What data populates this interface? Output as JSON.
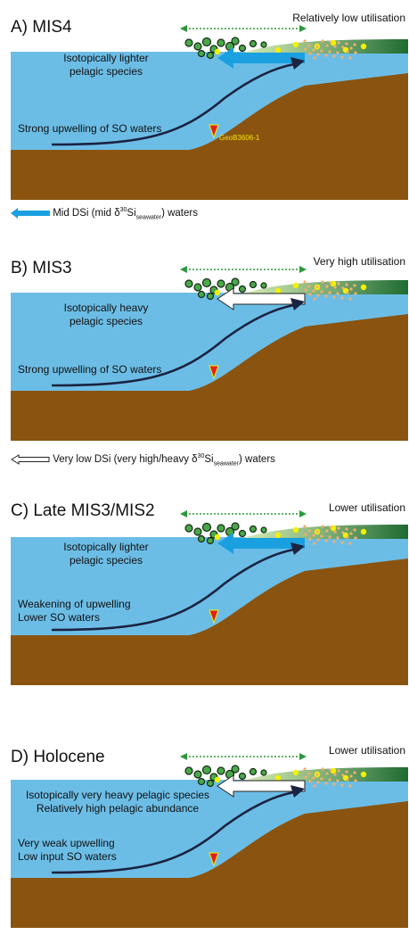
{
  "panels": [
    {
      "title": "A) MIS4",
      "utilisation": "Relatively low utilisation",
      "label_species": [
        "Isotopically lighter",
        "pelagic species"
      ],
      "label_upwelling": [
        "Strong upwelling of SO waters"
      ],
      "site_label": "GeoB3606-1",
      "arrow": "blue"
    },
    {
      "title": "B) MIS3",
      "utilisation": "Very high utilisation",
      "label_species": [
        "Isotopically heavy",
        "pelagic species"
      ],
      "label_upwelling": [
        "Strong upwelling of SO waters"
      ],
      "arrow": "white"
    },
    {
      "title": "C) Late MIS3/MIS2",
      "utilisation": "Lower utilisation",
      "label_species": [
        "Isotopically lighter",
        "pelagic species"
      ],
      "label_upwelling": [
        "Weakening of upwelling",
        "Lower SO waters"
      ],
      "arrow": "blue"
    },
    {
      "title": "D) Holocene",
      "utilisation": "Lower utilisation",
      "label_species": [
        "Isotopically very heavy pelagic species",
        "Relatively high pelagic abundance"
      ],
      "label_upwelling": [
        "Very weak upwelling",
        "Low input SO waters"
      ],
      "arrow": "white"
    }
  ],
  "legend_blue": {
    "pre": "Mid DSi (mid δ",
    "sup": "30",
    "mid": "Si",
    "sub": "seawater",
    "post": ") waters"
  },
  "legend_white": {
    "pre": "Very low DSi (very high/heavy δ",
    "sup": "30",
    "mid": "Si",
    "sub": "seawater",
    "post": ") waters"
  },
  "colors": {
    "ocean": "#6cbde6",
    "sediment": "#8a5410",
    "shelf_green": "#1e6b32",
    "blue_arrow": "#1aa0e0",
    "upwelling_arrow": "#1a2340",
    "dotted_arrow": "#2a9a3a",
    "site_marker": "#e02020",
    "diatom_yellow": "#f2f200",
    "diatom_orange": "#f0b070"
  }
}
